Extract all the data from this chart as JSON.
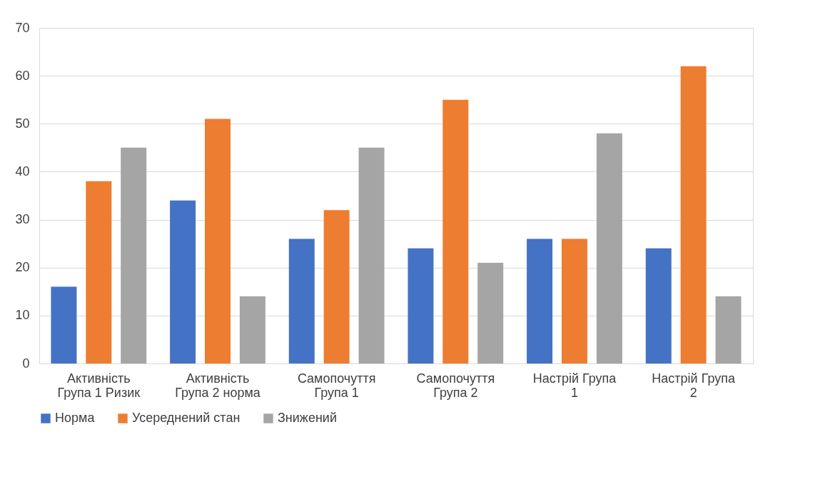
{
  "chart_data": {
    "type": "bar",
    "categories": [
      "Активність Група 1 Ризик",
      "Активність Група 2 норма",
      "Самопочуття Група 1",
      "Самопочуття Група 2",
      "Настрій Група 1",
      "Настрій Група 2"
    ],
    "series": [
      {
        "name": "Норма",
        "color": "#4472c4",
        "values": [
          16,
          34,
          26,
          24,
          26,
          24
        ]
      },
      {
        "name": "Усереднений стан",
        "color": "#ed7d31",
        "values": [
          38,
          51,
          32,
          55,
          26,
          62
        ]
      },
      {
        "name": "Знижений",
        "color": "#a5a5a5",
        "values": [
          45,
          14,
          45,
          21,
          48,
          14
        ]
      }
    ],
    "ylim": [
      0,
      70
    ],
    "yticks": [
      0,
      10,
      20,
      30,
      40,
      50,
      60,
      70
    ],
    "grid": "y",
    "legend": "bottom"
  }
}
